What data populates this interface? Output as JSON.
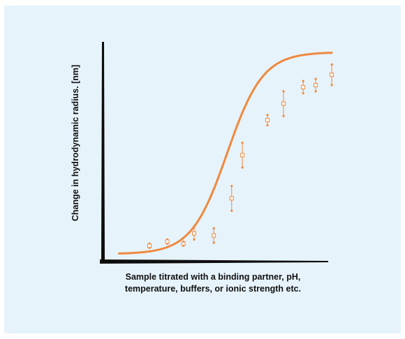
{
  "chart_data": {
    "type": "scatter",
    "xlabel_lines": [
      "Sample titrated with a binding partner, pH,",
      "temperature, buffers, or ionic strength etc."
    ],
    "ylabel": "Change in hydrodynamic radius. [nm]",
    "grid": false,
    "legend": "none",
    "colors": {
      "curve": "#f0883e",
      "points": "#f0883e",
      "axes": "#0d0d0d",
      "background": "#e6f3fa"
    },
    "curve": {
      "model": "sigmoid",
      "baseline": 0.2,
      "plateau": 10.0,
      "midpoint": 6.85,
      "slope": 1.0
    },
    "xlim": [
      0,
      12.5
    ],
    "ylim": [
      0,
      10.5
    ],
    "points": [
      {
        "x": 2.5,
        "y": 0.6,
        "err": 0.1
      },
      {
        "x": 3.5,
        "y": 0.8,
        "err": 0.1
      },
      {
        "x": 4.4,
        "y": 0.7,
        "err": 0.1
      },
      {
        "x": 5.0,
        "y": 1.2,
        "err": 0.3
      },
      {
        "x": 6.1,
        "y": 1.1,
        "err": 0.35
      },
      {
        "x": 7.1,
        "y": 2.9,
        "err": 0.6
      },
      {
        "x": 7.7,
        "y": 5.0,
        "err": 0.6
      },
      {
        "x": 9.1,
        "y": 6.7,
        "err": 0.25
      },
      {
        "x": 10.0,
        "y": 7.5,
        "err": 0.6
      },
      {
        "x": 11.1,
        "y": 8.3,
        "err": 0.3
      },
      {
        "x": 11.8,
        "y": 8.4,
        "err": 0.3
      },
      {
        "x": 12.7,
        "y": 8.9,
        "err": 0.5
      }
    ]
  }
}
